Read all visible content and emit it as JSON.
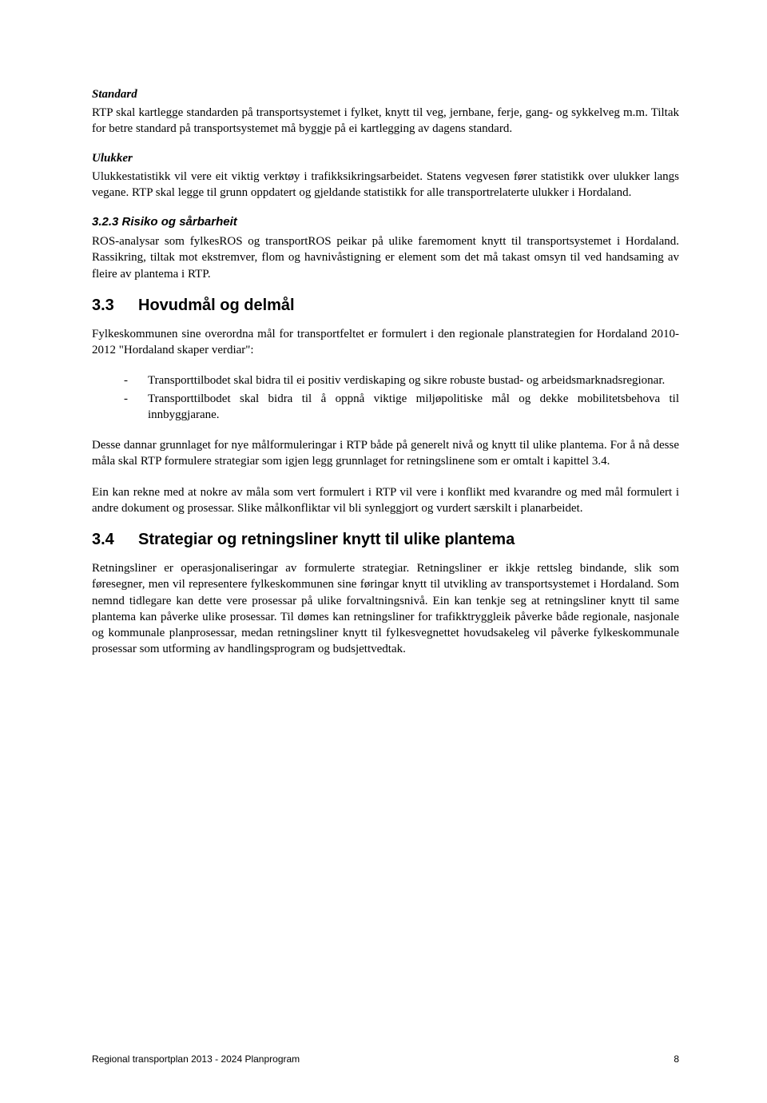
{
  "colors": {
    "text": "#000000",
    "background": "#ffffff"
  },
  "typography": {
    "body_font": "Times New Roman",
    "heading_font": "Arial",
    "body_size_pt": 11,
    "heading_size_pt": 15
  },
  "standard": {
    "heading": "Standard",
    "body": "RTP skal kartlegge standarden på transportsystemet i fylket, knytt til veg, jernbane, ferje, gang- og sykkelveg m.m. Tiltak for betre standard på transportsystemet må byggje på ei kartlegging av dagens standard."
  },
  "ulukker": {
    "heading": "Ulukker",
    "body": "Ulukkestatistikk vil vere eit viktig verktøy i trafikksikringsarbeidet. Statens vegvesen fører statistikk over ulukker langs vegane. RTP skal legge til grunn oppdatert og gjeldande statistikk for alle transportrelaterte ulukker i Hordaland."
  },
  "risiko": {
    "heading": "3.2.3 Risiko og sårbarheit",
    "body": "ROS-analysar som fylkesROS og transportROS peikar på ulike faremoment knytt til transportsystemet i Hordaland. Rassikring, tiltak mot ekstremver, flom og havnivåstigning er element som det må takast omsyn til ved handsaming av fleire av plantema i RTP."
  },
  "section33": {
    "number": "3.3",
    "title": "Hovudmål og delmål",
    "intro": "Fylkeskommunen sine overordna mål for transportfeltet er formulert i den regionale planstrategien for Hordaland 2010-2012 \"Hordaland skaper verdiar\":",
    "bullets": [
      "Transporttilbodet skal bidra til ei positiv verdiskaping og sikre robuste bustad- og arbeidsmarknadsregionar.",
      "Transporttilbodet skal bidra til å oppnå viktige miljøpolitiske mål og dekke mobilitetsbehova til innbyggjarane."
    ],
    "p2": "Desse dannar grunnlaget for nye målformuleringar i RTP både på generelt nivå og knytt til ulike plantema. For å nå desse måla skal RTP formulere strategiar som igjen legg grunnlaget for retningslinene som er omtalt i kapittel 3.4.",
    "p3": "Ein kan rekne med at nokre av måla som vert formulert i RTP vil vere i konflikt med kvarandre og med mål formulert i andre dokument og prosessar. Slike målkonfliktar vil bli synleggjort og vurdert særskilt i planarbeidet."
  },
  "section34": {
    "number": "3.4",
    "title": "Strategiar og retningsliner knytt til ulike plantema",
    "body": "Retningsliner er operasjonaliseringar av formulerte strategiar. Retningsliner er ikkje rettsleg bindande, slik som føresegner, men vil representere fylkeskommunen sine føringar knytt til utvikling av transportsystemet i Hordaland. Som nemnd tidlegare kan dette vere prosessar på ulike forvaltningsnivå. Ein kan tenkje seg at retningsliner knytt til same plantema kan påverke ulike prosessar. Til dømes kan retningsliner for trafikktryggleik påverke både regionale, nasjonale og kommunale planprosessar, medan retningsliner knytt til fylkesvegnettet hovudsakeleg vil påverke fylkeskommunale prosessar som utforming av handlingsprogram og budsjettvedtak."
  },
  "footer": {
    "left": "Regional transportplan 2013 - 2024 Planprogram",
    "page": "8"
  }
}
